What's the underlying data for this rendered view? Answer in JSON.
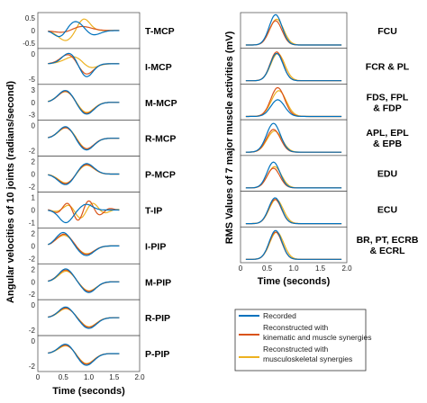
{
  "colors": {
    "recorded": "#0072BD",
    "kinematic_muscle": "#D95319",
    "musculoskeletal": "#EDB120"
  },
  "legend": {
    "recorded": "Recorded",
    "kinematic_line1": "Reconstructed with",
    "kinematic_line2": "kinematic and muscle synergies",
    "musculo_line1": "Reconstructed with",
    "musculo_line2": "musculoskeletal synergies"
  },
  "chart_data": [
    {
      "type": "line",
      "xlabel": "Time (seconds)",
      "ylabel": "Angular velocities of 10 joints (radians/second)",
      "xlim": [
        0,
        2
      ],
      "xticks": [
        "0",
        "0.5",
        "1.0",
        "1.5",
        "2.0"
      ],
      "panels": [
        {
          "label": "T-MCP",
          "yticks": [
            "0.5",
            "0",
            "-0.5"
          ],
          "ylim": [
            -0.8,
            0.8
          ]
        },
        {
          "label": "I-MCP",
          "yticks": [
            "0",
            "-5"
          ],
          "ylim": [
            -7,
            5
          ]
        },
        {
          "label": "M-MCP",
          "yticks": [
            "3",
            "0",
            "-3"
          ],
          "ylim": [
            -4,
            4
          ]
        },
        {
          "label": "R-MCP",
          "yticks": [
            "0",
            "-2"
          ],
          "ylim": [
            -3,
            3
          ]
        },
        {
          "label": "P-MCP",
          "yticks": [
            "2",
            "0",
            "-2"
          ],
          "ylim": [
            -3,
            3
          ]
        },
        {
          "label": "T-IP",
          "yticks": [
            "1",
            "0",
            "-1"
          ],
          "ylim": [
            -1.4,
            1.4
          ]
        },
        {
          "label": "I-PIP",
          "yticks": [
            "2",
            "0",
            "-2"
          ],
          "ylim": [
            -3,
            3
          ]
        },
        {
          "label": "M-PIP",
          "yticks": [
            "2",
            "0",
            "-2"
          ],
          "ylim": [
            -3,
            3
          ]
        },
        {
          "label": "R-PIP",
          "yticks": [
            "0",
            "-2"
          ],
          "ylim": [
            -3,
            3
          ]
        },
        {
          "label": "P-PIP",
          "yticks": [
            "0",
            "-2"
          ],
          "ylim": [
            -3,
            3
          ]
        }
      ]
    },
    {
      "type": "line",
      "xlabel": "Time (seconds)",
      "ylabel": "RMS Values of 7 major muscle activities (mV)",
      "xlim": [
        0,
        2
      ],
      "xticks": [
        "0",
        "0.5",
        "1.0",
        "1.5",
        "2.0"
      ],
      "panels": [
        {
          "label_lines": [
            "FCU"
          ]
        },
        {
          "label_lines": [
            "FCR & PL"
          ]
        },
        {
          "label_lines": [
            "FDS, FPL",
            "& FDP"
          ]
        },
        {
          "label_lines": [
            "APL, EPL",
            "& EPB"
          ]
        },
        {
          "label_lines": [
            "EDU"
          ]
        },
        {
          "label_lines": [
            "ECU"
          ]
        },
        {
          "label_lines": [
            "BR, PT, ECRB",
            "& ECRL"
          ]
        }
      ]
    }
  ]
}
